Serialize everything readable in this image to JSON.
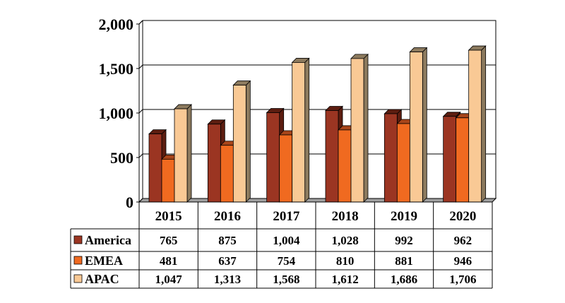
{
  "chart_data": {
    "type": "bar",
    "style": "3d-clustered-column-with-data-table",
    "categories": [
      "2015",
      "2016",
      "2017",
      "2018",
      "2019",
      "2020"
    ],
    "series": [
      {
        "name": "America",
        "color": "#9b3522",
        "side": "#5c1d10",
        "values": [
          765,
          875,
          1004,
          1028,
          992,
          962
        ],
        "labels": [
          "765",
          "875",
          "1,004",
          "1,028",
          "992",
          "962"
        ]
      },
      {
        "name": "EMEA",
        "color": "#f06a20",
        "side": "#a8451a",
        "values": [
          481,
          637,
          754,
          810,
          881,
          946
        ],
        "labels": [
          "481",
          "637",
          "754",
          "810",
          "881",
          "946"
        ]
      },
      {
        "name": "APAC",
        "color": "#f9c995",
        "side": "#8c7a5e",
        "values": [
          1047,
          1313,
          1568,
          1612,
          1686,
          1706
        ],
        "labels": [
          "1,047",
          "1,313",
          "1,568",
          "1,612",
          "1,686",
          "1,706"
        ]
      }
    ],
    "yticks": [
      "0",
      "500",
      "1,000",
      "1,500",
      "2,000"
    ],
    "ytick_values": [
      0,
      500,
      1000,
      1500,
      2000
    ],
    "ylim": [
      0,
      2000
    ],
    "grid": true,
    "legend": "data-table-left",
    "title": "",
    "xlabel": "",
    "ylabel": ""
  }
}
